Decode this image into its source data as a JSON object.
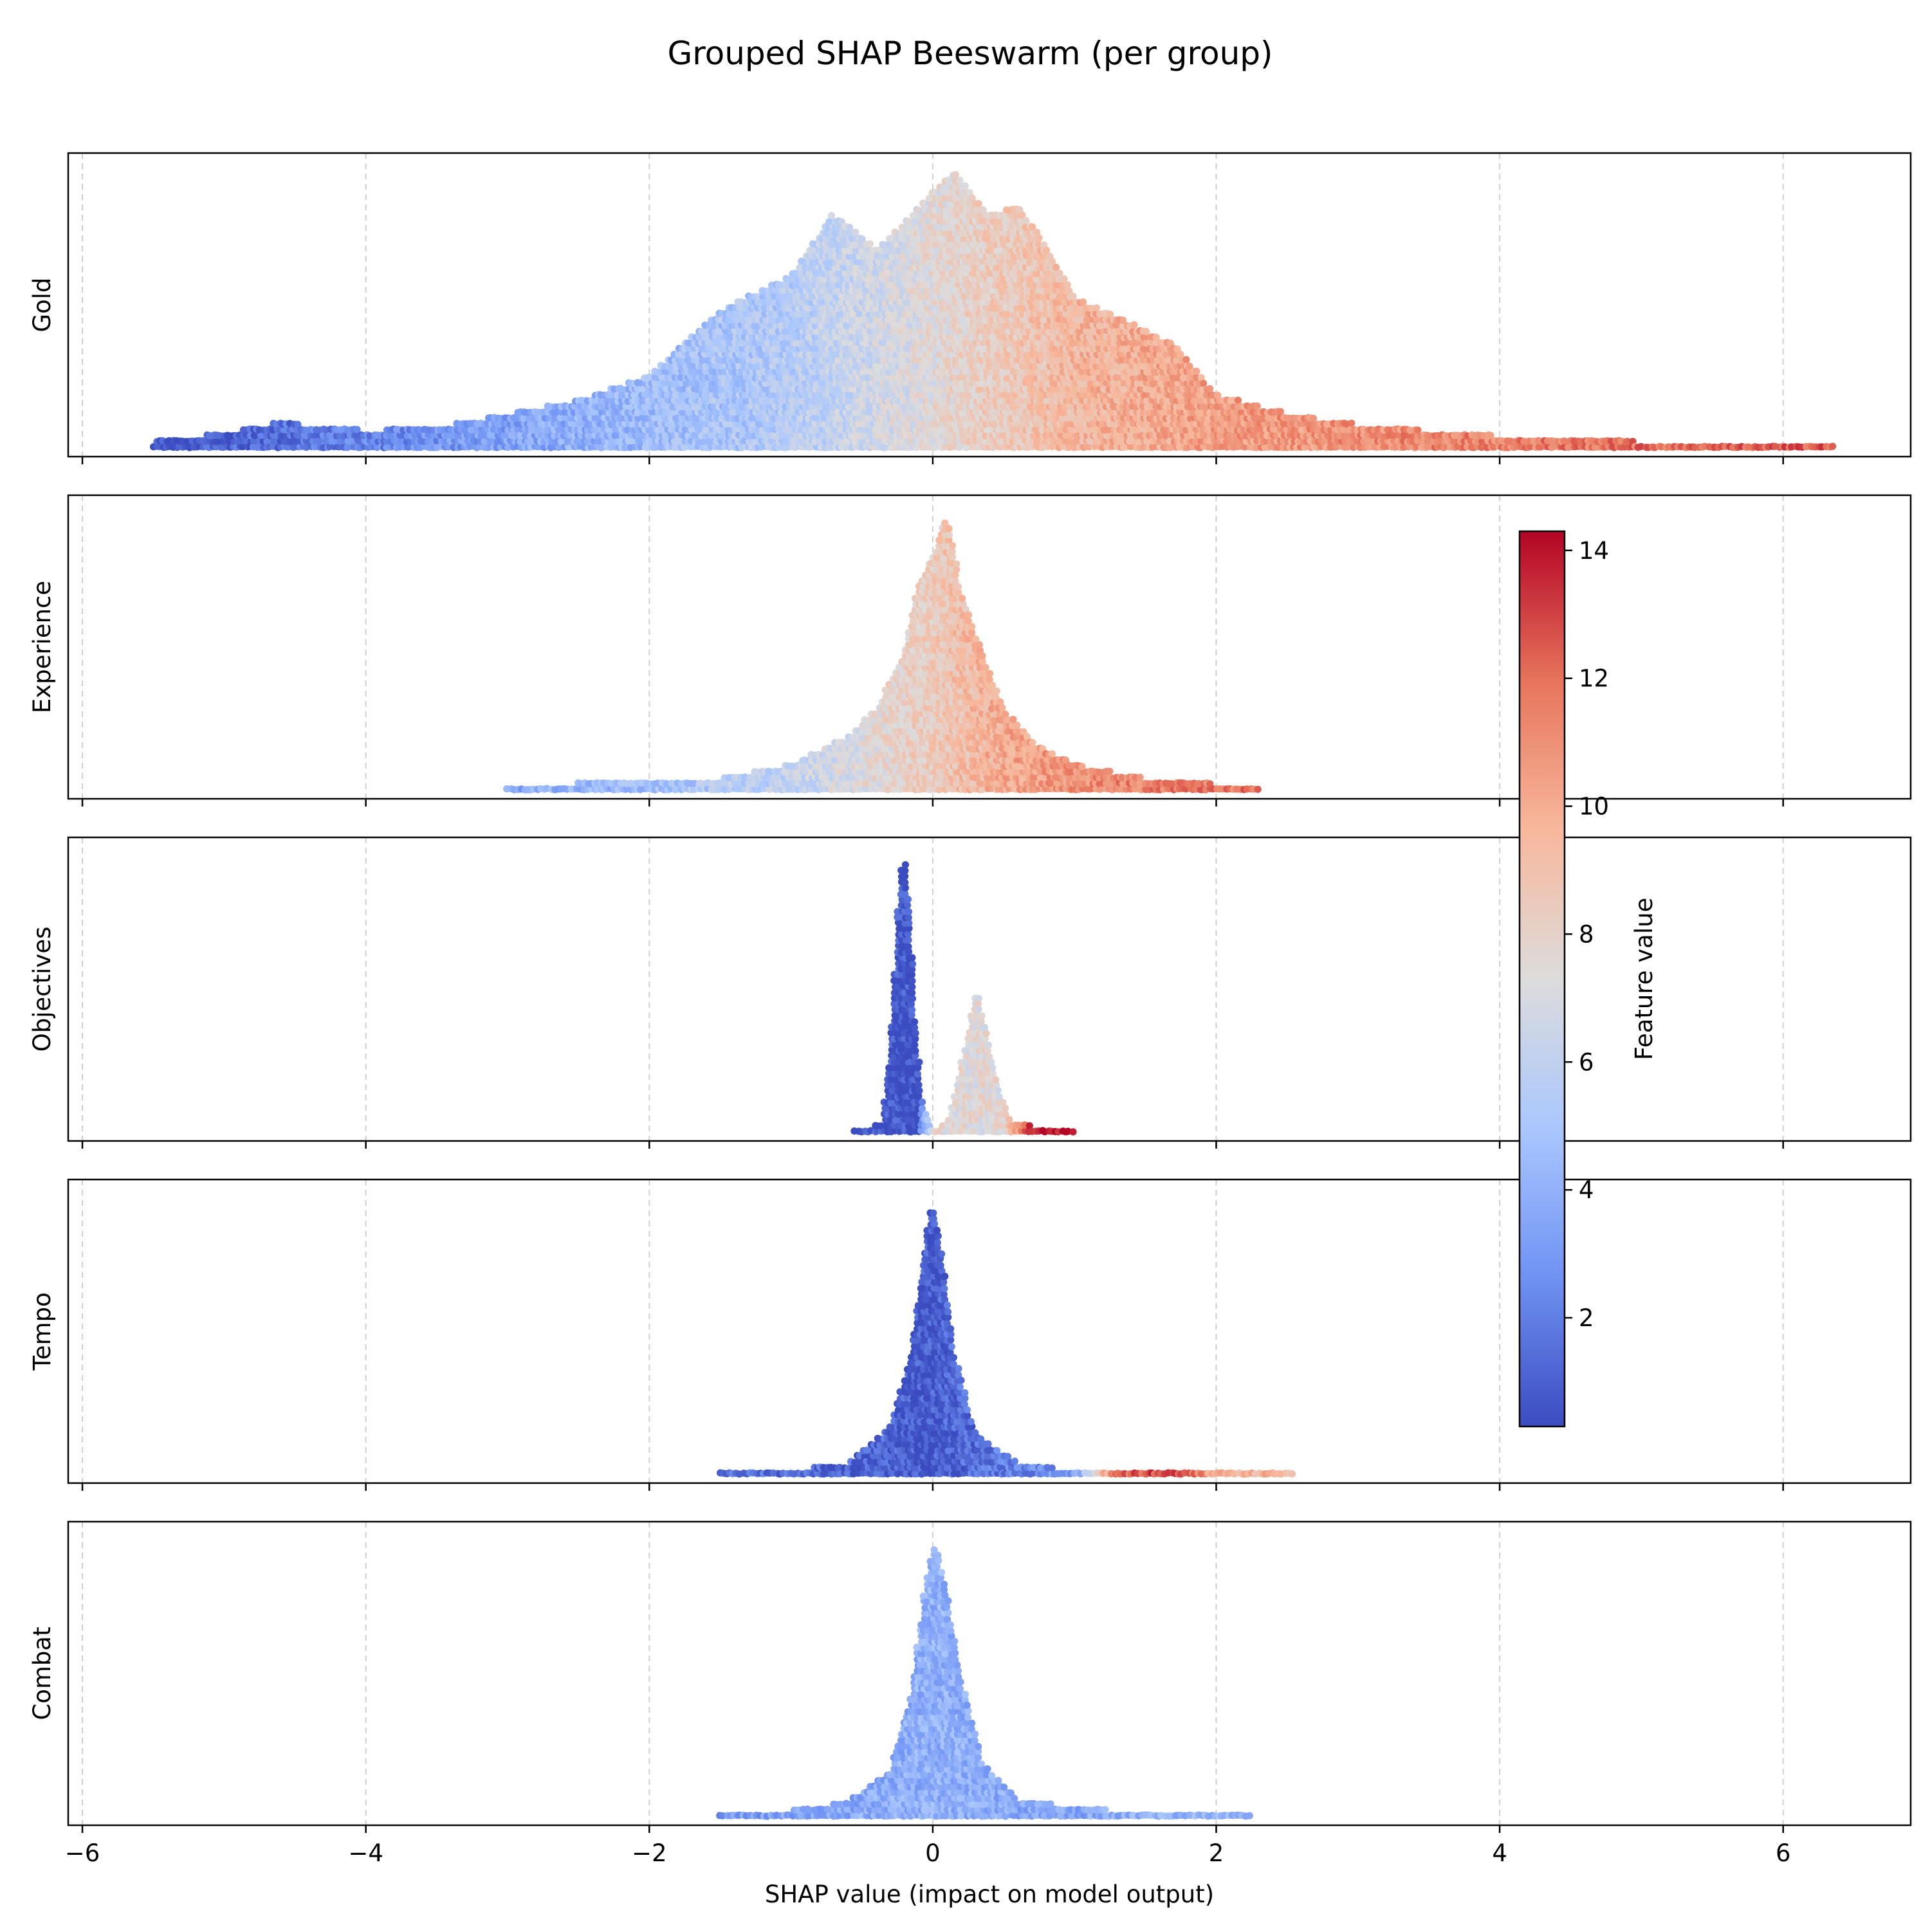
{
  "chart_data": {
    "type": "scatter",
    "subtype": "beeswarm",
    "title": "Grouped SHAP Beeswarm (per group)",
    "xlabel": "SHAP value (impact on model output)",
    "xlim": [
      -6.1,
      6.9
    ],
    "xticks": [
      -6,
      -4,
      -2,
      0,
      2,
      4,
      6
    ],
    "xtick_labels": [
      "−6",
      "−4",
      "−2",
      "0",
      "2",
      "4",
      "6"
    ],
    "grid": "vertical dashed",
    "colorbar": {
      "label": "Feature value",
      "range": [
        0.3,
        14.3
      ],
      "ticks": [
        2,
        4,
        6,
        8,
        10,
        12,
        14
      ],
      "tick_labels": [
        "2",
        "4",
        "6",
        "8",
        "10",
        "12",
        "14"
      ],
      "colormap": "coolwarm",
      "colors": [
        "#3b4cc0",
        "#6f92f3",
        "#aac7fd",
        "#dddcdc",
        "#f7b89c",
        "#e7745b",
        "#b40426"
      ]
    },
    "groups": [
      {
        "name": "Gold",
        "x_range": [
          -5.5,
          6.35
        ],
        "density": [
          [
            -5.5,
            0.03
          ],
          [
            -5.0,
            0.06
          ],
          [
            -4.6,
            0.1
          ],
          [
            -4.0,
            0.07
          ],
          [
            -3.5,
            0.08
          ],
          [
            -3.0,
            0.13
          ],
          [
            -2.5,
            0.18
          ],
          [
            -2.0,
            0.27
          ],
          [
            -1.5,
            0.5
          ],
          [
            -1.0,
            0.63
          ],
          [
            -0.7,
            0.85
          ],
          [
            -0.4,
            0.72
          ],
          [
            -0.2,
            0.82
          ],
          [
            0.0,
            0.93
          ],
          [
            0.15,
            1.0
          ],
          [
            0.4,
            0.85
          ],
          [
            0.6,
            0.88
          ],
          [
            0.8,
            0.74
          ],
          [
            1.0,
            0.55
          ],
          [
            1.3,
            0.48
          ],
          [
            1.7,
            0.38
          ],
          [
            2.0,
            0.2
          ],
          [
            2.5,
            0.13
          ],
          [
            3.0,
            0.09
          ],
          [
            3.5,
            0.07
          ],
          [
            4.0,
            0.05
          ],
          [
            4.5,
            0.04
          ],
          [
            5.0,
            0.03
          ],
          [
            5.6,
            0.02
          ],
          [
            6.35,
            0.01
          ]
        ],
        "color_map": [
          [
            -5.5,
            0.5
          ],
          [
            -2.0,
            4.5
          ],
          [
            -1.0,
            5.5
          ],
          [
            0.0,
            7.5
          ],
          [
            1.0,
            9.5
          ],
          [
            2.0,
            10.5
          ],
          [
            4.0,
            11.5
          ],
          [
            6.4,
            12.5
          ]
        ]
      },
      {
        "name": "Experience",
        "x_range": [
          -3.0,
          2.3
        ],
        "density": [
          [
            -3.0,
            0.02
          ],
          [
            -2.6,
            0.03
          ],
          [
            -2.0,
            0.04
          ],
          [
            -1.5,
            0.05
          ],
          [
            -1.0,
            0.1
          ],
          [
            -0.6,
            0.2
          ],
          [
            -0.4,
            0.3
          ],
          [
            -0.2,
            0.5
          ],
          [
            -0.1,
            0.75
          ],
          [
            0.0,
            0.85
          ],
          [
            0.1,
            1.0
          ],
          [
            0.2,
            0.72
          ],
          [
            0.35,
            0.5
          ],
          [
            0.5,
            0.3
          ],
          [
            0.7,
            0.18
          ],
          [
            1.0,
            0.1
          ],
          [
            1.5,
            0.05
          ],
          [
            2.0,
            0.03
          ],
          [
            2.3,
            0.02
          ]
        ],
        "color_map": [
          [
            -3.0,
            3.5
          ],
          [
            -1.0,
            6.0
          ],
          [
            0.0,
            8.5
          ],
          [
            0.5,
            10.0
          ],
          [
            1.0,
            11.0
          ],
          [
            2.3,
            12.0
          ]
        ]
      },
      {
        "name": "Objectives",
        "x_range": [
          -0.55,
          1.0
        ],
        "density": [
          [
            -0.55,
            0.0
          ],
          [
            -0.35,
            0.05
          ],
          [
            -0.28,
            0.45
          ],
          [
            -0.23,
            0.95
          ],
          [
            -0.2,
            1.0
          ],
          [
            -0.17,
            0.85
          ],
          [
            -0.13,
            0.45
          ],
          [
            -0.08,
            0.12
          ],
          [
            0.0,
            0.02
          ],
          [
            0.1,
            0.04
          ],
          [
            0.18,
            0.2
          ],
          [
            0.26,
            0.4
          ],
          [
            0.31,
            0.52
          ],
          [
            0.36,
            0.42
          ],
          [
            0.45,
            0.18
          ],
          [
            0.55,
            0.05
          ],
          [
            0.7,
            0.03
          ],
          [
            1.0,
            0.01
          ]
        ],
        "color_map": [
          [
            -0.55,
            0.6
          ],
          [
            -0.1,
            0.6
          ],
          [
            0.0,
            7.5
          ],
          [
            0.5,
            7.5
          ],
          [
            0.7,
            14.0
          ],
          [
            1.0,
            14.2
          ]
        ]
      },
      {
        "name": "Tempo",
        "x_range": [
          -1.5,
          2.55
        ],
        "density": [
          [
            -1.5,
            0.01
          ],
          [
            -1.0,
            0.02
          ],
          [
            -0.6,
            0.05
          ],
          [
            -0.3,
            0.18
          ],
          [
            -0.15,
            0.45
          ],
          [
            -0.05,
            0.85
          ],
          [
            0.0,
            1.0
          ],
          [
            0.05,
            0.85
          ],
          [
            0.15,
            0.45
          ],
          [
            0.3,
            0.15
          ],
          [
            0.6,
            0.05
          ],
          [
            1.0,
            0.02
          ],
          [
            1.5,
            0.01
          ],
          [
            2.55,
            0.01
          ]
        ],
        "color_map": [
          [
            -1.5,
            1.5
          ],
          [
            0.0,
            0.8
          ],
          [
            1.0,
            3.0
          ],
          [
            1.3,
            12.0
          ],
          [
            1.7,
            13.5
          ],
          [
            2.0,
            10.0
          ],
          [
            2.55,
            9.5
          ]
        ]
      },
      {
        "name": "Combat",
        "x_range": [
          -1.5,
          2.25
        ],
        "density": [
          [
            -1.5,
            0.02
          ],
          [
            -1.0,
            0.03
          ],
          [
            -0.6,
            0.06
          ],
          [
            -0.3,
            0.17
          ],
          [
            -0.15,
            0.45
          ],
          [
            -0.05,
            0.85
          ],
          [
            0.02,
            1.0
          ],
          [
            0.1,
            0.8
          ],
          [
            0.2,
            0.5
          ],
          [
            0.35,
            0.2
          ],
          [
            0.6,
            0.07
          ],
          [
            1.0,
            0.04
          ],
          [
            1.5,
            0.02
          ],
          [
            2.25,
            0.01
          ]
        ],
        "color_map": [
          [
            -1.5,
            3.0
          ],
          [
            0.0,
            4.0
          ],
          [
            1.0,
            3.5
          ],
          [
            2.25,
            4.5
          ]
        ]
      }
    ]
  }
}
